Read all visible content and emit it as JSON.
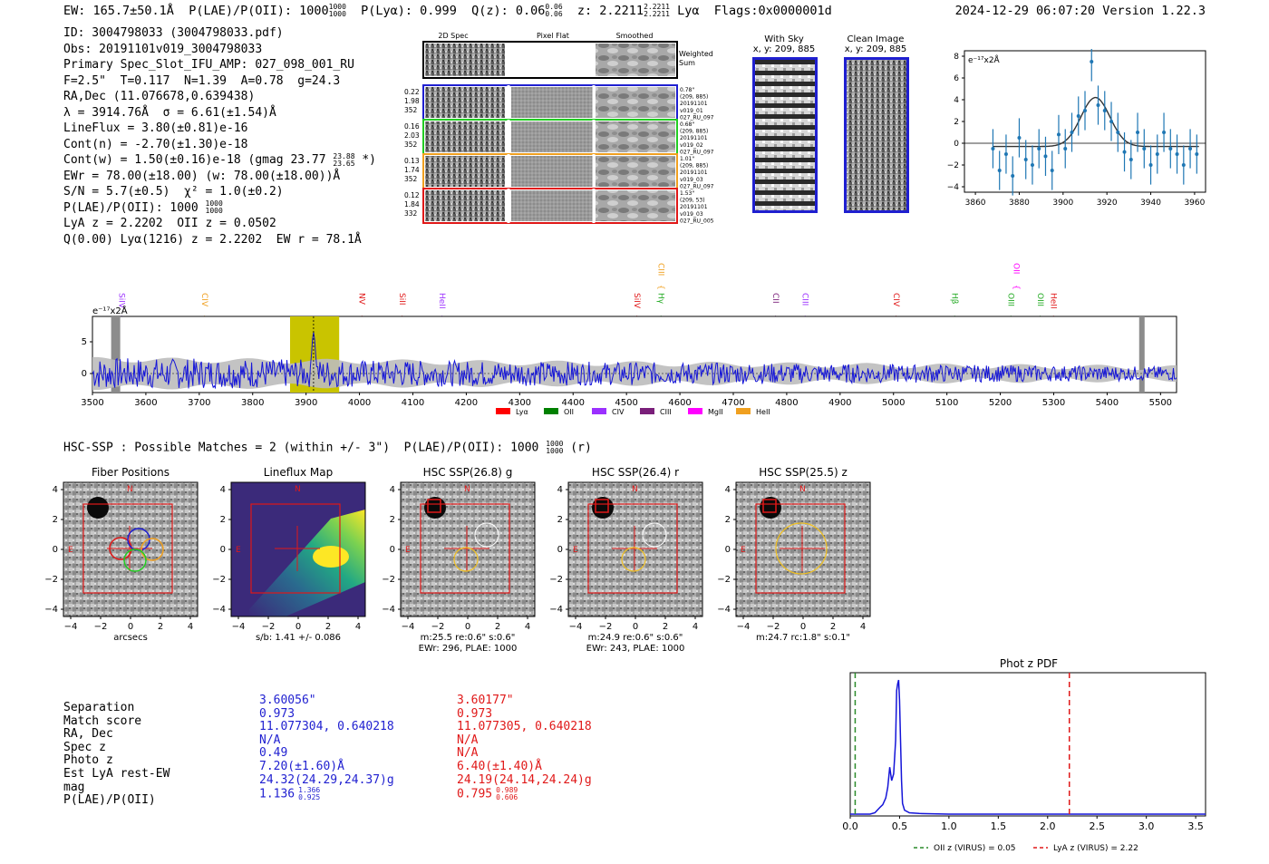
{
  "header": {
    "ew": "EW: 165.7±50.1Å",
    "plae": "P(LAE)/P(OII): 1000",
    "plae_hi": "1000",
    "plae_lo": "1000",
    "plya": "P(Lyα): 0.999",
    "qz": "Q(z): 0.06",
    "qz_hi": "0.06",
    "qz_lo": "0.06",
    "z": "z: 2.2211",
    "z_hi": "2.2211",
    "z_lo": "2.2211",
    "line": "Lyα",
    "flags": "Flags:0x0000001d",
    "datetime": "2024-12-29 06:07:20",
    "version": "Version 1.22.3"
  },
  "info": {
    "id": "ID: 3004798033 (3004798033.pdf)",
    "obs": "Obs: 20191101v019_3004798033",
    "primary": "Primary Spec_Slot_IFU_AMP: 027_098_001_RU",
    "params": "F=2.5\"  T=0.117  N=1.39  A=0.78  g=24.3",
    "radec": "RA,Dec (11.076678,0.639438)",
    "lambda": "λ = 3914.76Å  σ = 6.61(±1.54)Å",
    "lineflux": "LineFlux = 3.80(±0.81)e-16",
    "contn": "Cont(n) = -2.70(±1.30)e-18",
    "contw": "Cont(w) = 1.50(±0.16)e-18 (gmag 23.77",
    "contw_hi": "23.88",
    "contw_lo": "23.65",
    "contw_end": " *)",
    "ewr": "EWr = 78.00(±18.00) (w: 78.00(±18.00))Å",
    "sn": "S/N = 5.7(±0.5)  χ² = 1.0(±0.2)",
    "plae": "P(LAE)/P(OII): 1000",
    "plae_hi": "1000",
    "plae_lo": "1000",
    "lya": "LyA z = 2.2202  OII z = 0.0502",
    "q": "Q(0.00) Lyα(1216) z = 2.2202  EW r = 78.1Å"
  },
  "cutouts": {
    "col_2d": "2D Spec",
    "col_flat": "Pixel Flat",
    "col_smooth": "Smoothed",
    "weighted": "Weighted",
    "sum": "Sum",
    "fibers": [
      {
        "left": [
          "0.22",
          "1.98",
          "352"
        ],
        "right": [
          "0.78\"",
          "(209, 885)",
          "20191101",
          "v019_01",
          "027_RU_097"
        ],
        "color": "#1f1fd0"
      },
      {
        "left": [
          "0.16",
          "2.03",
          "352"
        ],
        "right": [
          "0.68\"",
          "(209, 885)",
          "20191101",
          "v019_02",
          "027_RU_097"
        ],
        "color": "#22cc22"
      },
      {
        "left": [
          "0.13",
          "1.74",
          "352"
        ],
        "right": [
          "1.01\"",
          "(209, 885)",
          "20191101",
          "v019_03",
          "027_RU_097"
        ],
        "color": "#f0a020"
      },
      {
        "left": [
          "0.12",
          "1.84",
          "332"
        ],
        "right": [
          "1.53\"",
          "(209, 53)",
          "20191101",
          "v019_03",
          "027_RU_005"
        ],
        "color": "#e01818"
      }
    ]
  },
  "sky": {
    "title": "With Sky",
    "coords": "x, y: 209, 885"
  },
  "clean": {
    "title": "Clean Image",
    "coords": "x, y: 209, 885"
  },
  "zoom_plot": {
    "unit": "e⁻¹⁷x2Å",
    "xticks": [
      "3860",
      "3880",
      "3900",
      "3920",
      "3940",
      "3960"
    ],
    "yticks": [
      "8",
      "6",
      "4",
      "2",
      "0",
      "−2",
      "−4"
    ]
  },
  "spectrum": {
    "unit": "e⁻¹⁷x2Å",
    "xticks": [
      "3500",
      "3600",
      "3700",
      "3800",
      "3900",
      "4000",
      "4100",
      "4200",
      "4300",
      "4400",
      "4500",
      "4600",
      "4700",
      "4800",
      "4900",
      "5000",
      "5100",
      "5200",
      "5300",
      "5400",
      "5500"
    ],
    "yticks": [
      "5",
      "0"
    ],
    "lines": [
      {
        "label": "SiIV",
        "color": "#9b30ff"
      },
      {
        "label": "CIV",
        "color": "#f0a020"
      },
      {
        "label": "NV",
        "color": "#e01818"
      },
      {
        "label": "SiII",
        "color": "#e01818"
      },
      {
        "label": "HeII",
        "color": "#9b30ff"
      },
      {
        "label": "SiIV",
        "color": "#e01818"
      },
      {
        "label": "Hγ",
        "color": "#22aa22"
      },
      {
        "label": "CIII",
        "color": "#f0a020"
      },
      {
        "label": "CII",
        "color": "#7a1f7a"
      },
      {
        "label": "CIII",
        "color": "#9b30ff"
      },
      {
        "label": "CIV",
        "color": "#e01818"
      },
      {
        "label": "Hβ",
        "color": "#22aa22"
      },
      {
        "label": "OIII",
        "color": "#22aa22"
      },
      {
        "label": "OII",
        "color": "#ff00ff"
      },
      {
        "label": "OIII",
        "color": "#22aa22"
      },
      {
        "label": "HeII",
        "color": "#e01818"
      }
    ],
    "legend": [
      {
        "label": "Lyα",
        "color": "#ff0000"
      },
      {
        "label": "OII",
        "color": "#008000"
      },
      {
        "label": "CIV",
        "color": "#9b30ff"
      },
      {
        "label": "CIII",
        "color": "#7a1f7a"
      },
      {
        "label": "MgII",
        "color": "#ff00ff"
      },
      {
        "label": "HeII",
        "color": "#f0a020"
      }
    ]
  },
  "hsc": {
    "line": "HSC-SSP : Possible Matches = 2 (within +/- 3\")  P(LAE)/P(OII): 1000",
    "hi": "1000",
    "lo": "1000",
    "end": " (r)"
  },
  "panels": [
    {
      "title": "Fiber Positions",
      "caption1": "arcsecs",
      "caption2": ""
    },
    {
      "title": "Lineflux Map",
      "caption1": "s/b: 1.41 +/- 0.086",
      "caption2": ""
    },
    {
      "title": "HSC SSP(26.8) g",
      "caption1": "m:25.5  re:0.6\"  s:0.6\"",
      "caption2": "EWr: 296, PLAE: 1000"
    },
    {
      "title": "HSC SSP(26.4) r",
      "caption1": "m:24.9  re:0.6\"  s:0.6\"",
      "caption2": "EWr: 243, PLAE: 1000"
    },
    {
      "title": "HSC SSP(25.5) z",
      "caption1": "m:24.7 rc:1.8\"  s:0.1\"",
      "caption2": ""
    }
  ],
  "panel_ticks": {
    "y": [
      "4",
      "2",
      "0",
      "−2",
      "−4"
    ],
    "x": [
      "−4",
      "−2",
      "0",
      "2",
      "4"
    ],
    "north": "N",
    "east": "E"
  },
  "table": {
    "labels": [
      "Separation",
      "Match score",
      "RA, Dec",
      "Spec z",
      "Photo z",
      "Est LyA rest-EW",
      "mag",
      "P(LAE)/P(OII)"
    ],
    "blue": [
      "3.60056\"",
      "0.973",
      "11.077304, 0.640218",
      "N/A",
      "0.49",
      "7.20(±1.60)Å",
      "24.32(24.29,24.37)g",
      "1.136"
    ],
    "blue_hi": "1.366",
    "blue_lo": "0.925",
    "red": [
      "3.60177\"",
      "0.973",
      "11.077305, 0.640218",
      "N/A",
      "N/A",
      "6.40(±1.40)Å",
      "24.19(24.14,24.24)g",
      "0.795"
    ],
    "red_hi": "0.989",
    "red_lo": "0.606"
  },
  "chart_data": [
    {
      "type": "line",
      "title": "Phot z PDF",
      "xlabel": "",
      "ylabel": "",
      "xlim": [
        0,
        3.6
      ],
      "xticks": [
        "0.0",
        "0.5",
        "1.0",
        "1.5",
        "2.0",
        "2.5",
        "3.0",
        "3.5"
      ],
      "x": [
        0.0,
        0.2,
        0.25,
        0.3,
        0.33,
        0.36,
        0.38,
        0.4,
        0.42,
        0.44,
        0.46,
        0.47,
        0.48,
        0.49,
        0.5,
        0.51,
        0.52,
        0.53,
        0.55,
        0.6,
        0.7,
        1.0,
        3.6
      ],
      "values": [
        0.0,
        0.0,
        0.01,
        0.05,
        0.07,
        0.12,
        0.2,
        0.35,
        0.25,
        0.3,
        0.55,
        0.92,
        0.97,
        1.0,
        0.85,
        0.55,
        0.25,
        0.08,
        0.03,
        0.01,
        0.005,
        0.0,
        0.0
      ],
      "vlines": [
        {
          "x": 0.05,
          "label": "OII z (VIRUS) = 0.05",
          "color": "#2a8a2a"
        },
        {
          "x": 2.22,
          "label": "LyA z (VIRUS) = 2.22",
          "color": "#e01818"
        }
      ]
    },
    {
      "type": "scatter",
      "title": "",
      "unit": "e⁻¹⁷x2Å",
      "xlim": [
        3855,
        3965
      ],
      "ylim": [
        -4.5,
        8.5
      ],
      "x": [
        3868,
        3871,
        3874,
        3877,
        3880,
        3883,
        3886,
        3889,
        3892,
        3895,
        3898,
        3901,
        3904,
        3907,
        3910,
        3913,
        3916,
        3919,
        3922,
        3925,
        3928,
        3931,
        3934,
        3937,
        3940,
        3943,
        3946,
        3949,
        3952,
        3955,
        3958,
        3961
      ],
      "values": [
        -0.5,
        -2.5,
        -1.0,
        -3.0,
        0.5,
        -1.5,
        -2.0,
        -0.5,
        -1.2,
        -2.5,
        0.8,
        -0.5,
        1.0,
        2.5,
        3.0,
        7.5,
        3.5,
        3.0,
        2.0,
        1.0,
        -0.8,
        -1.5,
        1.0,
        -0.5,
        -2.0,
        -1.0,
        1.0,
        -0.5,
        -1.0,
        -2.0,
        -0.5,
        -1.0
      ],
      "errors": [
        1.8,
        1.8,
        1.8,
        1.8,
        1.8,
        1.8,
        1.8,
        1.8,
        1.8,
        1.8,
        1.8,
        1.8,
        1.8,
        1.8,
        1.8,
        1.8,
        1.8,
        1.8,
        1.8,
        1.8,
        1.8,
        1.8,
        1.8,
        1.8,
        1.8,
        1.8,
        1.8,
        1.8,
        1.8,
        1.8,
        1.8,
        1.8
      ],
      "fit": {
        "center": 3914.76,
        "sigma": 6.61,
        "amplitude": 4.5,
        "baseline": -0.3
      }
    },
    {
      "type": "line",
      "title": "",
      "unit": "e⁻¹⁷x2Å",
      "xlim": [
        3500,
        5530
      ],
      "ylim": [
        -3,
        9
      ],
      "series": [
        {
          "name": "spectrum",
          "values": []
        }
      ],
      "highlight_band": [
        3870,
        3962
      ],
      "peak_x": 3914,
      "note": "noise-like spectrum around zero with a peak near 3914Å"
    }
  ]
}
